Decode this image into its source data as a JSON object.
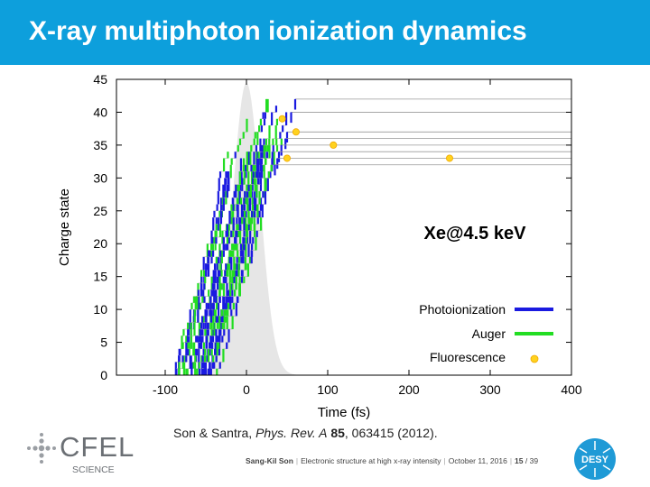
{
  "slide": {
    "title": "X-ray multiphoton ionization dynamics",
    "citation": {
      "authors": "Son & Santra, ",
      "journal": "Phys. Rev. A",
      "volume": "85",
      "rest": ", 063415 (2012)."
    },
    "footer": {
      "author": "Sang-Kil Son",
      "talk": "Electronic structure at high x-ray intensity",
      "date": "October 11, 2016",
      "page": "15",
      "total": "/ 39"
    },
    "logos": {
      "cfel_text": "CFEL",
      "cfel_sub": "SCIENCE",
      "desy_text": "DESY"
    }
  },
  "chart_data": {
    "type": "line",
    "annotation": "Xe@4.5 keV",
    "xlabel": "Time (fs)",
    "ylabel": "Charge state",
    "xlim": [
      -160,
      400
    ],
    "ylim": [
      0,
      45
    ],
    "xticks": [
      -100,
      0,
      100,
      200,
      300,
      400
    ],
    "yticks": [
      0,
      5,
      10,
      15,
      20,
      25,
      30,
      35,
      40,
      45
    ],
    "grid": false,
    "legend_position": "bottom-right",
    "legend": [
      {
        "name": "Photoionization",
        "color": "#1a1ae0",
        "marker": "line"
      },
      {
        "name": "Auger",
        "color": "#22dd22",
        "marker": "line"
      },
      {
        "name": "Fluorescence",
        "color": "#ffd21f",
        "marker": "dot"
      }
    ],
    "pulse": {
      "center": 0,
      "fwhm": 40,
      "peak": 44.5,
      "color": "#e6e6e6"
    },
    "trajectory_lines": [
      {
        "start": 60,
        "end": 400,
        "y": 42
      },
      {
        "start": 55,
        "end": 400,
        "y": 40
      },
      {
        "start": 50,
        "end": 400,
        "y": 37
      },
      {
        "start": 48,
        "end": 400,
        "y": 36
      },
      {
        "start": 43,
        "end": 400,
        "y": 35
      },
      {
        "start": 40,
        "end": 400,
        "y": 34
      },
      {
        "start": 38,
        "end": 400,
        "y": 33
      },
      {
        "start": 35,
        "end": 400,
        "y": 32
      }
    ],
    "fluorescence_points": [
      {
        "x": 44,
        "y": 39
      },
      {
        "x": 61,
        "y": 37
      },
      {
        "x": 107,
        "y": 35
      },
      {
        "x": 50,
        "y": 33
      },
      {
        "x": 250,
        "y": 33
      }
    ],
    "colors": {
      "photo": "#1a1ae0",
      "auger": "#22dd22",
      "fluor": "#ffd21f",
      "traj": "#999999"
    }
  }
}
